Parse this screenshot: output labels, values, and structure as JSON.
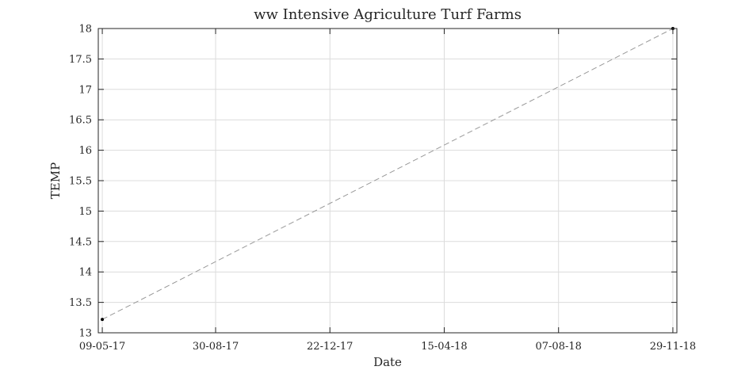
{
  "chart_data": {
    "type": "line",
    "title": "ww Intensive Agriculture Turf Farms",
    "xlabel": "Date",
    "ylabel": "TEMP",
    "x_ticks": [
      "09-05-17",
      "30-08-17",
      "22-12-17",
      "15-04-18",
      "07-08-18",
      "29-11-18"
    ],
    "y_ticks": [
      "13",
      "13.5",
      "14",
      "14.5",
      "15",
      "15.5",
      "16",
      "16.5",
      "17",
      "17.5",
      "18"
    ],
    "ylim": [
      13,
      18
    ],
    "xlim": [
      "2017-05-05",
      "2018-12-03"
    ],
    "grid": true,
    "series": [
      {
        "line_style": "dashed",
        "line_color": "#999999",
        "marker_color": "#000000",
        "points": [
          {
            "x": "2017-05-09",
            "y": 13.22
          },
          {
            "x": "2018-11-29",
            "y": 18.0
          }
        ]
      }
    ]
  }
}
